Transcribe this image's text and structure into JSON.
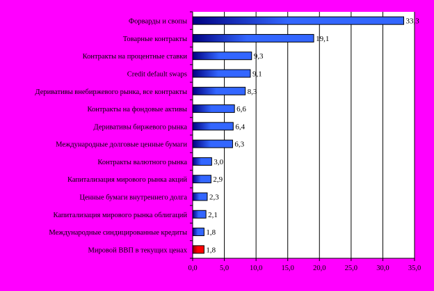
{
  "chart_data": {
    "type": "bar",
    "orientation": "horizontal",
    "categories": [
      "Форварды и свопы",
      "Товарные контракты",
      "Контракты на процентные ставки",
      "Credit default swaps",
      "Деривативы внебиржевого рынка, все контракты",
      "Контракты на фондовые активы",
      "Деривативы биржевого рынка",
      "Международные долговые ценные бумаги",
      "Контракты валютного рынка",
      "Капитализация мирового рынка акций",
      "Ценные бумаги внутреннего долга",
      "Капитализация мирового рынка облигаций",
      "Международные синдицированные кредиты",
      "Мировой ВВП в текущих ценах"
    ],
    "values": [
      33.3,
      19.1,
      9.3,
      9.1,
      8.3,
      6.6,
      6.4,
      6.3,
      3.0,
      2.9,
      2.3,
      2.1,
      1.8,
      1.8
    ],
    "value_labels": [
      "33,3",
      "19,1",
      "9,3",
      "9,1",
      "8,3",
      "6,6",
      "6,4",
      "6,3",
      "3,0",
      "2,9",
      "2,3",
      "2,1",
      "1,8",
      "1,8"
    ],
    "ticks": [
      "0,0",
      "5,0",
      "10,0",
      "15,0",
      "20,0",
      "25,0",
      "30,0",
      "35,0"
    ],
    "xlim": [
      0,
      35
    ],
    "grid": true,
    "bar_color": "#3366ff",
    "bar_dark": "#000080",
    "highlight_index": 13,
    "highlight_color": "#ff0000",
    "highlight_dark": "#800000",
    "background": "#ff00ff",
    "plot_background": "#ffffff"
  }
}
